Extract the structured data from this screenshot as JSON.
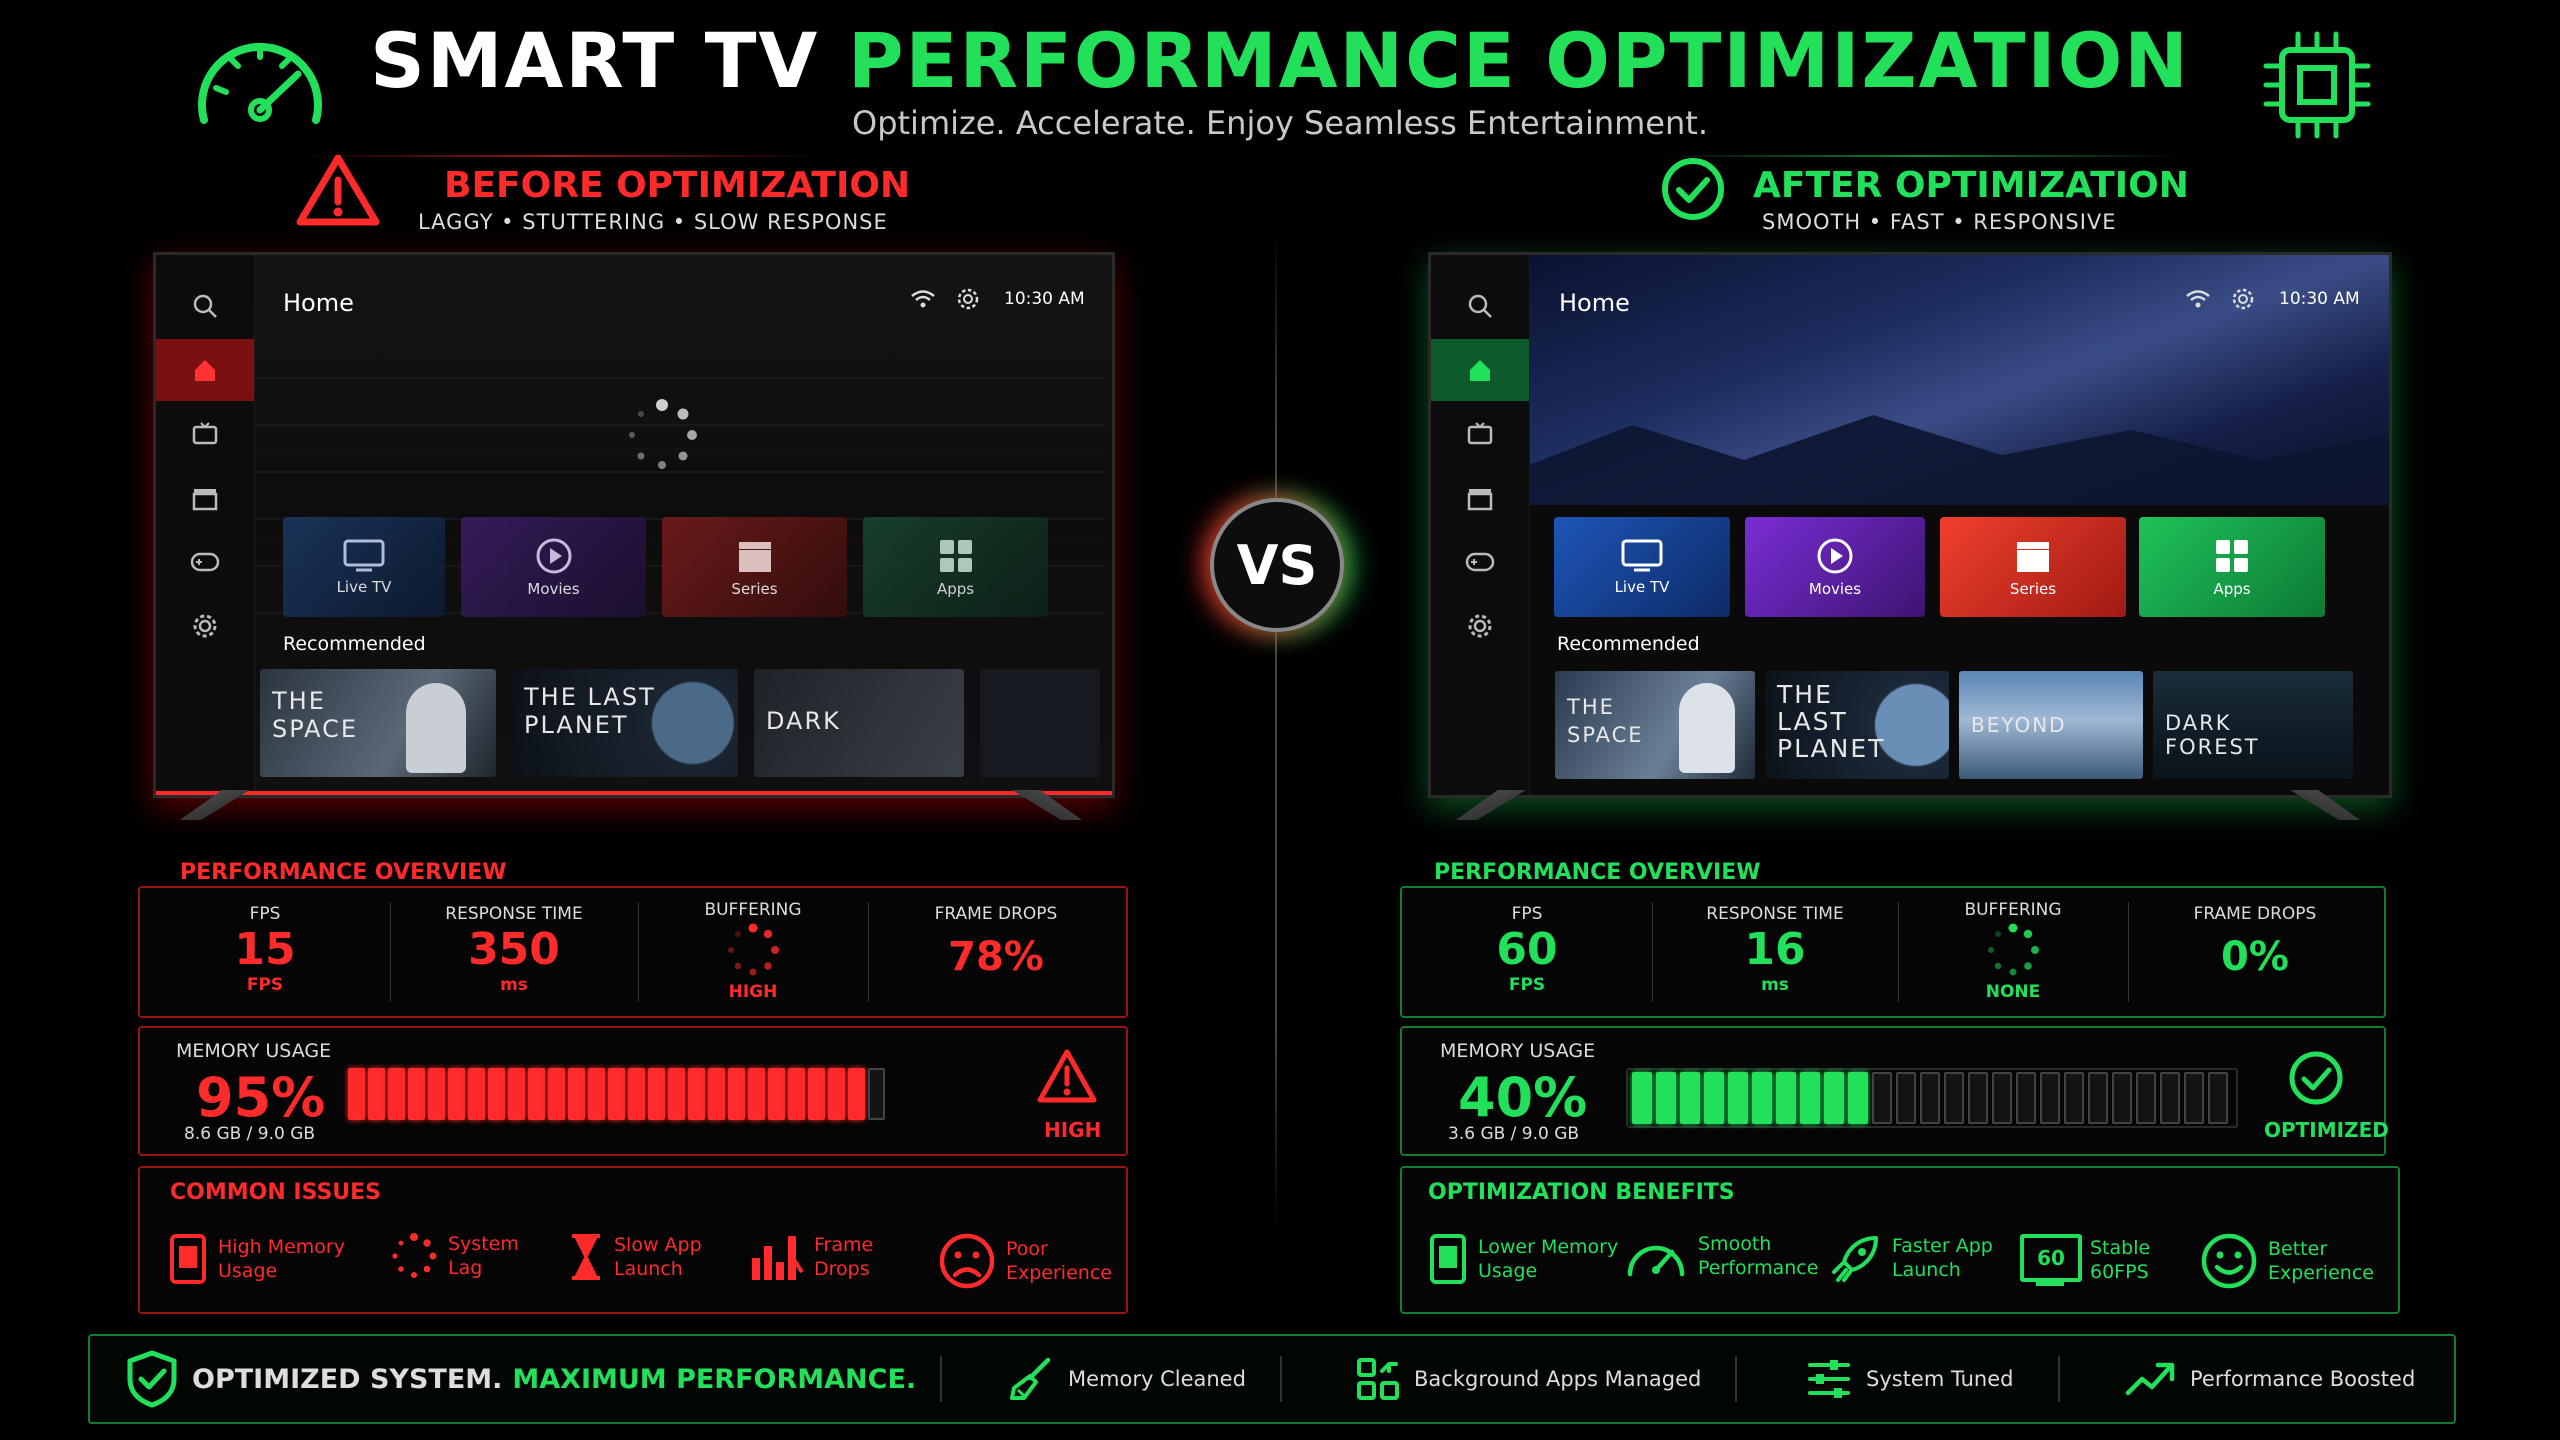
{
  "header": {
    "title_part1": "SMART TV",
    "title_part2": "PERFORMANCE OPTIMIZATION",
    "subtitle": "Optimize. Accelerate. Enjoy Seamless Entertainment."
  },
  "before": {
    "heading": "BEFORE OPTIMIZATION",
    "subheading": "LAGGY  •  STUTTERING  •  SLOW RESPONSE",
    "tv": {
      "page_title": "Home",
      "time": "10:30 AM",
      "tiles": [
        "Live TV",
        "Movies",
        "Series",
        "Apps"
      ],
      "recommended_label": "Recommended",
      "posters": [
        "THE\nSPACE",
        "THE LAST\nPLANET",
        "DARK"
      ]
    },
    "perf": {
      "title": "PERFORMANCE OVERVIEW",
      "fps_label": "FPS",
      "fps_value": "15",
      "fps_unit": "FPS",
      "resp_label": "RESPONSE TIME",
      "resp_value": "350",
      "resp_unit": "ms",
      "buf_label": "BUFFERING",
      "buf_value": "HIGH",
      "drops_label": "FRAME DROPS",
      "drops_value": "78%"
    },
    "memory": {
      "label": "MEMORY USAGE",
      "value": "95%",
      "detail": "8.6 GB / 9.0 GB",
      "fill_fraction": 0.95,
      "status": "HIGH"
    },
    "issues": {
      "title": "COMMON ISSUES",
      "items": [
        {
          "line1": "High Memory",
          "line2": "Usage",
          "icon": "memory-icon"
        },
        {
          "line1": "System",
          "line2": "Lag",
          "icon": "spinner-icon"
        },
        {
          "line1": "Slow App",
          "line2": "Launch",
          "icon": "hourglass-icon"
        },
        {
          "line1": "Frame",
          "line2": "Drops",
          "icon": "bars-icon"
        },
        {
          "line1": "Poor",
          "line2": "Experience",
          "icon": "sad-face-icon"
        }
      ]
    }
  },
  "vs_label": "VS",
  "after": {
    "heading": "AFTER OPTIMIZATION",
    "subheading": "SMOOTH  •  FAST  •  RESPONSIVE",
    "tv": {
      "page_title": "Home",
      "time": "10:30 AM",
      "tiles": [
        "Live TV",
        "Movies",
        "Series",
        "Apps"
      ],
      "recommended_label": "Recommended",
      "posters": [
        "THE\nSPACE",
        "THE\nLAST\nPLANET",
        "BEYOND",
        "DARK\nFOREST"
      ]
    },
    "perf": {
      "title": "PERFORMANCE OVERVIEW",
      "fps_label": "FPS",
      "fps_value": "60",
      "fps_unit": "FPS",
      "resp_label": "RESPONSE TIME",
      "resp_value": "16",
      "resp_unit": "ms",
      "buf_label": "BUFFERING",
      "buf_value": "NONE",
      "drops_label": "FRAME DROPS",
      "drops_value": "0%"
    },
    "memory": {
      "label": "MEMORY USAGE",
      "value": "40%",
      "detail": "3.6 GB / 9.0 GB",
      "fill_fraction": 0.4,
      "status": "OPTIMIZED"
    },
    "benefits": {
      "title": "OPTIMIZATION BENEFITS",
      "items": [
        {
          "line1": "Lower Memory",
          "line2": "Usage",
          "icon": "memory-icon"
        },
        {
          "line1": "Smooth",
          "line2": "Performance",
          "icon": "gauge-icon"
        },
        {
          "line1": "Faster App",
          "line2": "Launch",
          "icon": "rocket-icon"
        },
        {
          "line1": "Stable",
          "line2": "60FPS",
          "icon": "monitor-60-icon",
          "badge": "60"
        },
        {
          "line1": "Better",
          "line2": "Experience",
          "icon": "smile-icon"
        }
      ]
    }
  },
  "footer": {
    "text_part1": "OPTIMIZED SYSTEM.",
    "text_part2": "MAXIMUM PERFORMANCE.",
    "items": [
      "Memory Cleaned",
      "Background Apps Managed",
      "System Tuned",
      "Performance Boosted"
    ]
  },
  "colors": {
    "bad": "#ff2a2a",
    "good": "#22e05a",
    "background": "#000000"
  }
}
